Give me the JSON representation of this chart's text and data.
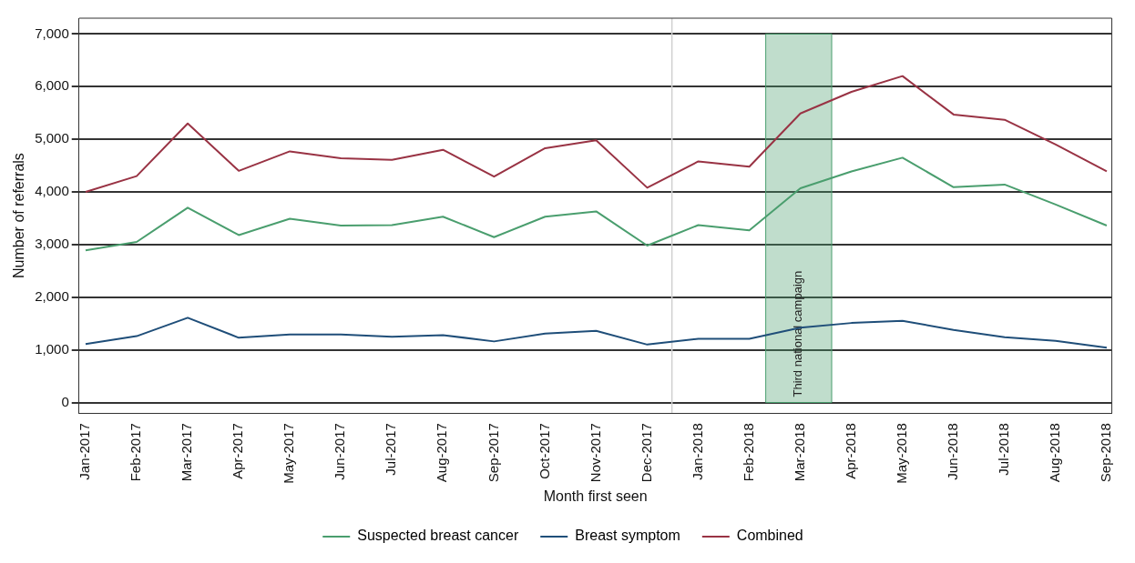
{
  "chart_data": {
    "type": "line",
    "xlabel": "Month first seen",
    "ylabel": "Number of referrals",
    "x": [
      "2017-01",
      "2017-02",
      "2017-03",
      "2017-04",
      "2017-05",
      "2017-06",
      "2017-07",
      "2017-08",
      "2017-09",
      "2017-10",
      "2017-11",
      "2017-12",
      "2018-01",
      "2018-02",
      "2018-03",
      "2018-04",
      "2018-05",
      "2018-06",
      "2018-07",
      "2018-08",
      "2018-09"
    ],
    "series": [
      {
        "name": "Suspected breast cancer",
        "color": "#4a9e6e",
        "values": [
          2890,
          3050,
          3700,
          3180,
          3490,
          3360,
          3370,
          3530,
          3140,
          3530,
          3630,
          2980,
          3370,
          3270,
          4070,
          4390,
          4650,
          4090,
          4140,
          3760,
          3360
        ]
      },
      {
        "name": "Breast symptom",
        "color": "#1f4e79",
        "values": [
          1110,
          1260,
          1610,
          1230,
          1290,
          1290,
          1250,
          1280,
          1160,
          1310,
          1360,
          1100,
          1210,
          1210,
          1420,
          1510,
          1550,
          1380,
          1240,
          1170,
          1040
        ]
      },
      {
        "name": "Combined",
        "color": "#993344",
        "values": [
          4000,
          4300,
          5300,
          4400,
          4770,
          4640,
          4610,
          4800,
          4290,
          4830,
          4980,
          4080,
          4580,
          4480,
          5490,
          5900,
          6200,
          5470,
          5370,
          4900,
          4390
        ]
      }
    ],
    "xlim": [
      "2016-12-28",
      "2018-09-04"
    ],
    "xticks": [
      {
        "value": "2017-01",
        "label": "Jan-2017"
      },
      {
        "value": "2017-02",
        "label": "Feb-2017"
      },
      {
        "value": "2017-03",
        "label": "Mar-2017"
      },
      {
        "value": "2017-04",
        "label": "Apr-2017"
      },
      {
        "value": "2017-05",
        "label": "May-2017"
      },
      {
        "value": "2017-06",
        "label": "Jun-2017"
      },
      {
        "value": "2017-07",
        "label": "Jul-2017"
      },
      {
        "value": "2017-08",
        "label": "Aug-2017"
      },
      {
        "value": "2017-09",
        "label": "Sep-2017"
      },
      {
        "value": "2017-10",
        "label": "Oct-2017"
      },
      {
        "value": "2017-11",
        "label": "Nov-2017"
      },
      {
        "value": "2017-12",
        "label": "Dec-2017"
      },
      {
        "value": "2018-01",
        "label": "Jan-2018"
      },
      {
        "value": "2018-02",
        "label": "Feb-2018"
      },
      {
        "value": "2018-03",
        "label": "Mar-2018"
      },
      {
        "value": "2018-04",
        "label": "Apr-2018"
      },
      {
        "value": "2018-05",
        "label": "May-2018"
      },
      {
        "value": "2018-06",
        "label": "Jun-2018"
      },
      {
        "value": "2018-07",
        "label": "Jul-2018"
      },
      {
        "value": "2018-08",
        "label": "Aug-2018"
      },
      {
        "value": "2018-09",
        "label": "Sep-2018"
      }
    ],
    "ylim": [
      -200,
      7300
    ],
    "yticks": [
      {
        "value": 0,
        "label": "0"
      },
      {
        "value": 1000,
        "label": "1,000"
      },
      {
        "value": 2000,
        "label": "2,000"
      },
      {
        "value": 3000,
        "label": "3,000"
      },
      {
        "value": 4000,
        "label": "4,000"
      },
      {
        "value": 5000,
        "label": "5,000"
      },
      {
        "value": 6000,
        "label": "6,000"
      },
      {
        "value": 7000,
        "label": "7,000"
      }
    ],
    "grid": "y",
    "legend": "bottom",
    "marker": "none",
    "line_style": "solid",
    "ref_lines": [
      {
        "axis": "x",
        "value": "2017-12-16",
        "color": "#d0d0d0"
      }
    ],
    "bands": [
      {
        "axis": "x",
        "from": "2018-02-10",
        "to": "2018-03-20",
        "label": "Third national campaign",
        "color": "#4a9e6e"
      }
    ]
  }
}
